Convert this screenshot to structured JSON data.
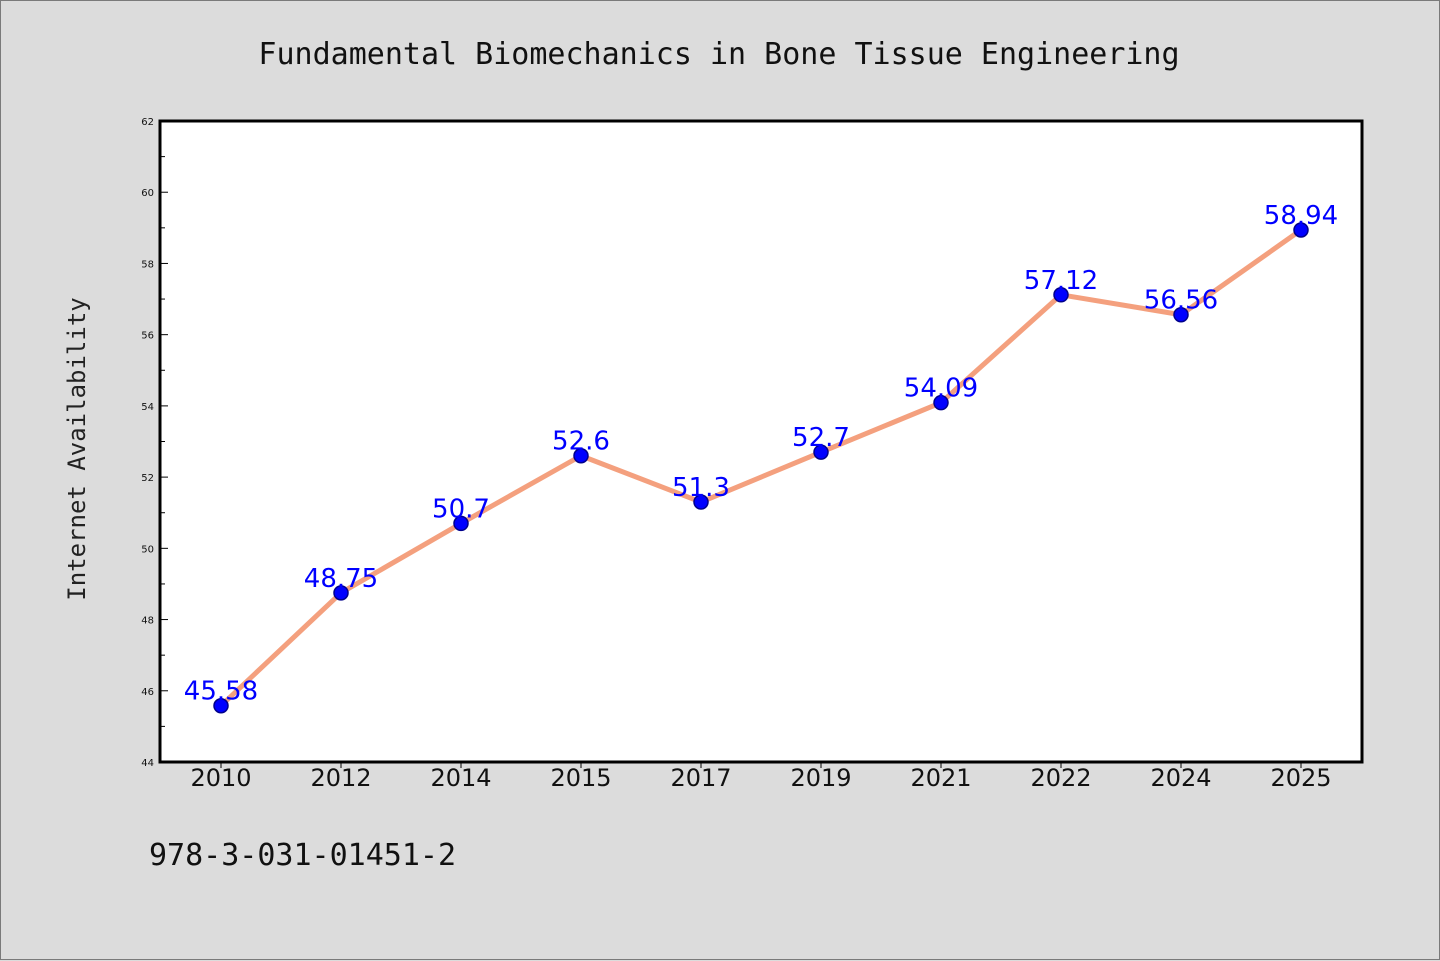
{
  "chart_data": {
    "type": "line",
    "title": "Fundamental Biomechanics in Bone Tissue Engineering",
    "xlabel": "",
    "ylabel": "Internet Availability",
    "categories": [
      "2010",
      "2012",
      "2014",
      "2015",
      "2017",
      "2019",
      "2021",
      "2022",
      "2024",
      "2025"
    ],
    "series": [
      {
        "values": [
          45.58,
          48.75,
          50.7,
          52.6,
          51.3,
          52.7,
          54.09,
          57.12,
          56.56,
          58.94
        ],
        "labels": [
          "45.58",
          "48.75",
          "50.7",
          "52.6",
          "51.3",
          "52.7",
          "54.09",
          "57.12",
          "56.56",
          "58.94"
        ]
      }
    ],
    "ylim": [
      44,
      62
    ],
    "yticks": [
      44,
      46,
      48,
      50,
      52,
      54,
      56,
      58,
      60,
      62
    ],
    "grid": false,
    "legend": "none",
    "colors": {
      "line": "#f4a07e",
      "marker": "#0000ff",
      "marker_edge": "#00008b",
      "data_label": "#0000ff",
      "background": "#dcdcdc",
      "plot_background": "#ffffff"
    }
  },
  "footer": {
    "isbn": "978-3-031-01451-2"
  }
}
